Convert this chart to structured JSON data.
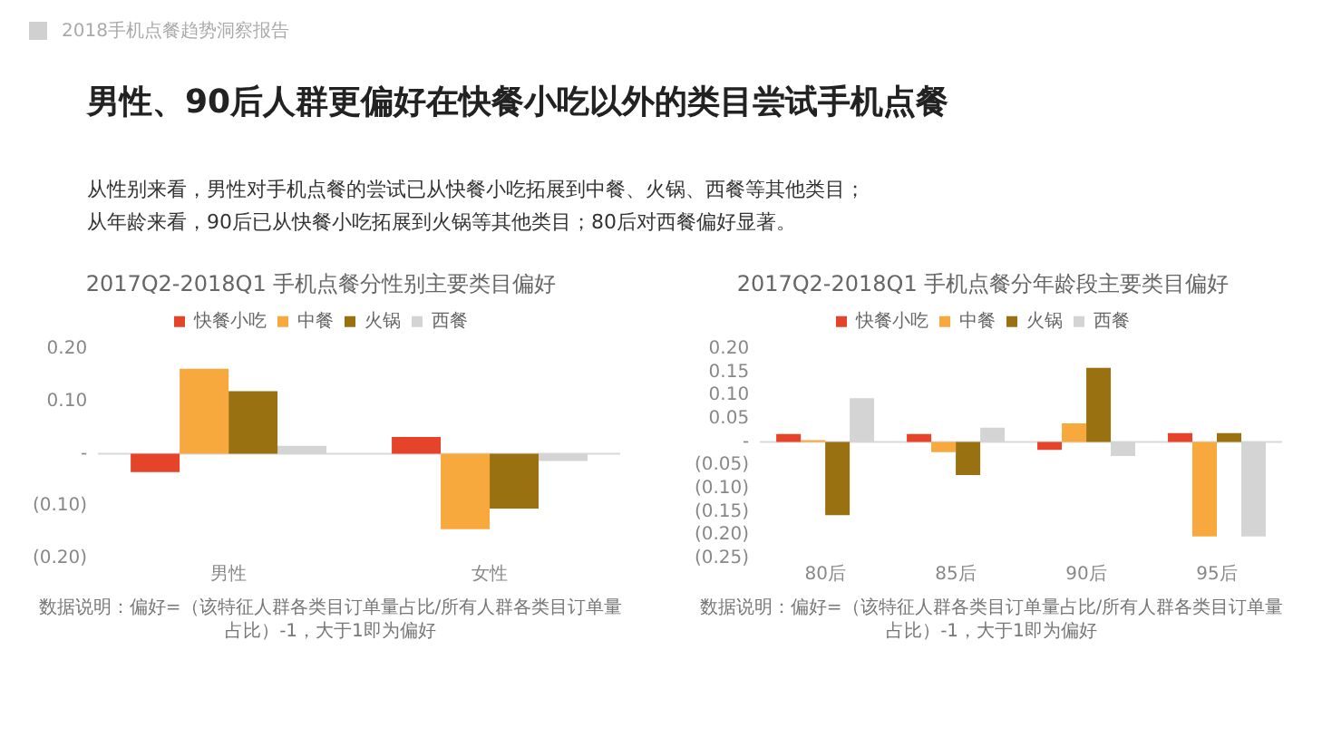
{
  "chart_data": [
    {
      "type": "other",
      "title": "男性、90后人群更偏好在快餐小吃以外的类目尝试手机点餐",
      "subtitle": "从性别来看，男性对手机点餐的尝试已从快餐小吃拓展到中餐、火锅、西餐等其他类目；",
      "annotations": [
        "2018手机点餐趋势洞察报告",
        "从年龄来看，90后已从快餐小吃拓展到火锅等其他类目；80后对西餐偏好显著。"
      ]
    },
    {
      "type": "bar",
      "title": "2017Q2-2018Q1 手机点餐分性别主要类目偏好",
      "categories": [
        "男性",
        "女性"
      ],
      "series": [
        {
          "name": "快餐小吃",
          "color": "#e5432a",
          "values": [
            -0.035,
            0.032
          ]
        },
        {
          "name": "中餐",
          "color": "#f8a93d",
          "values": [
            0.162,
            -0.144
          ]
        },
        {
          "name": "火锅",
          "color": "#9a7110",
          "values": [
            0.119,
            -0.105
          ]
        },
        {
          "name": "西餐",
          "color": "#d4d4d4",
          "values": [
            0.015,
            -0.014
          ]
        }
      ],
      "ylim": [
        -0.2,
        0.2
      ],
      "yticks": [
        {
          "value": 0.2,
          "label": "0.20"
        },
        {
          "value": 0.1,
          "label": "0.10"
        },
        {
          "value": 0,
          "label": "-"
        },
        {
          "value": -0.1,
          "label": "(0.10)"
        },
        {
          "value": -0.2,
          "label": "(0.20)"
        }
      ],
      "ref_lines": [
        {
          "axis": "y",
          "value": 0,
          "color": "#d9d9d9"
        }
      ],
      "grid": false,
      "legend": "top",
      "annotations": [
        "数据说明：偏好=（该特征人群各类目订单量占比/所有人群各类目订单量占比）-1，大于1即为偏好"
      ]
    },
    {
      "type": "bar",
      "title": "2017Q2-2018Q1 手机点餐分年龄段主要类目偏好",
      "categories": [
        "80后",
        "85后",
        "90后",
        "95后"
      ],
      "series": [
        {
          "name": "快餐小吃",
          "color": "#e5432a",
          "values": [
            0.017,
            0.017,
            -0.017,
            0.019
          ]
        },
        {
          "name": "中餐",
          "color": "#f8a93d",
          "values": [
            0.004,
            -0.022,
            0.04,
            -0.203
          ]
        },
        {
          "name": "火锅",
          "color": "#9a7110",
          "values": [
            -0.157,
            -0.071,
            0.159,
            0.019
          ]
        },
        {
          "name": "西餐",
          "color": "#d4d4d4",
          "values": [
            0.094,
            0.031,
            -0.03,
            -0.203
          ]
        }
      ],
      "ylim": [
        -0.25,
        0.2
      ],
      "yticks": [
        {
          "value": 0.2,
          "label": "0.20"
        },
        {
          "value": 0.15,
          "label": "0.15"
        },
        {
          "value": 0.1,
          "label": "0.10"
        },
        {
          "value": 0.05,
          "label": "0.05"
        },
        {
          "value": 0,
          "label": "-"
        },
        {
          "value": -0.05,
          "label": "(0.05)"
        },
        {
          "value": -0.1,
          "label": "(0.10)"
        },
        {
          "value": -0.15,
          "label": "(0.15)"
        },
        {
          "value": -0.2,
          "label": "(0.20)"
        },
        {
          "value": -0.25,
          "label": "(0.25)"
        }
      ],
      "ref_lines": [
        {
          "axis": "y",
          "value": 0,
          "color": "#d9d9d9"
        }
      ],
      "grid": false,
      "legend": "top",
      "annotations": [
        "数据说明：偏好=（该特征人群各类目订单量占比/所有人群各类目订单量占比）-1，大于1即为偏好"
      ]
    }
  ]
}
